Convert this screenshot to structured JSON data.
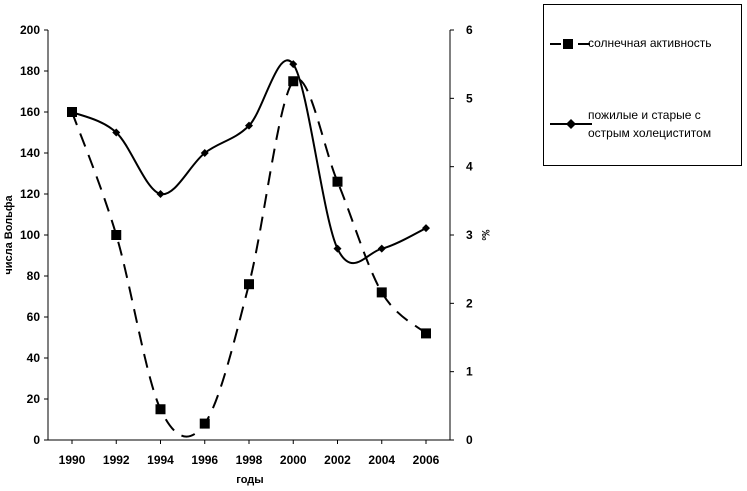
{
  "chart_data": {
    "type": "line",
    "x": [
      1990,
      1992,
      1994,
      1996,
      1998,
      2000,
      2002,
      2004,
      2006
    ],
    "x_ticks": [
      "1990",
      "1992",
      "1994",
      "1996",
      "1998",
      "2000",
      "2002",
      "2004",
      "2006"
    ],
    "xlabel": "годы",
    "ylabel_left": "числа Вольфа",
    "ylabel_right": "‰",
    "ylim_left": [
      0,
      200
    ],
    "ylim_right": [
      0,
      6
    ],
    "yticks_left": [
      "0",
      "20",
      "40",
      "60",
      "80",
      "100",
      "120",
      "140",
      "160",
      "180",
      "200"
    ],
    "yticks_right": [
      "0",
      "1",
      "2",
      "3",
      "4",
      "5",
      "6"
    ],
    "grid": false,
    "legend_position": "top-right outside",
    "series": [
      {
        "name": "солнечная активность",
        "axis": "left",
        "style": "dashed",
        "marker": "square",
        "values": [
          160,
          100,
          15,
          8,
          76,
          175,
          126,
          72,
          52
        ]
      },
      {
        "name": "пожилые и старые с острым холециститом",
        "axis": "right",
        "style": "solid",
        "marker": "diamond",
        "values": [
          4.8,
          4.5,
          3.6,
          4.2,
          4.6,
          5.5,
          2.8,
          2.8,
          3.1
        ]
      }
    ]
  },
  "legend": {
    "item1_label": "солнечная активность",
    "item2_line1": "пожилые и старые с",
    "item2_line2": "острым холециститом"
  },
  "colors": {
    "line": "#000000",
    "background": "#ffffff"
  }
}
